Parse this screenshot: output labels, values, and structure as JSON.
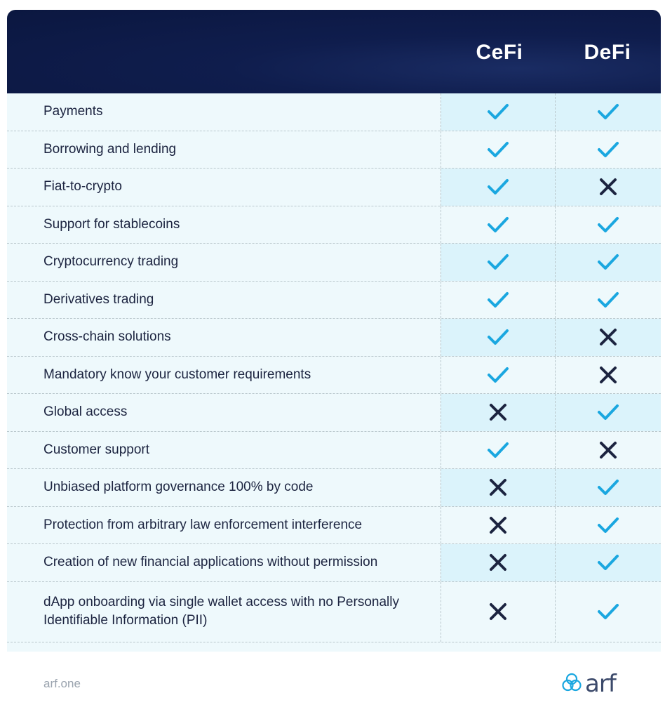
{
  "header": {
    "columns": [
      "CeFi",
      "DeFi"
    ]
  },
  "rows": [
    {
      "label": "Payments",
      "cefi": "check",
      "defi": "check"
    },
    {
      "label": "Borrowing and lending",
      "cefi": "check",
      "defi": "check"
    },
    {
      "label": "Fiat-to-crypto",
      "cefi": "check",
      "defi": "cross"
    },
    {
      "label": "Support for stablecoins",
      "cefi": "check",
      "defi": "check"
    },
    {
      "label": "Cryptocurrency trading",
      "cefi": "check",
      "defi": "check"
    },
    {
      "label": "Derivatives trading",
      "cefi": "check",
      "defi": "check"
    },
    {
      "label": "Cross-chain solutions",
      "cefi": "check",
      "defi": "cross"
    },
    {
      "label": "Mandatory know your customer requirements",
      "cefi": "check",
      "defi": "cross"
    },
    {
      "label": "Global access",
      "cefi": "cross",
      "defi": "check"
    },
    {
      "label": "Customer support",
      "cefi": "check",
      "defi": "cross"
    },
    {
      "label": "Unbiased platform governance 100% by code",
      "cefi": "cross",
      "defi": "check"
    },
    {
      "label": "Protection from arbitrary law enforcement interference",
      "cefi": "cross",
      "defi": "check"
    },
    {
      "label": "Creation of new financial applications without permission",
      "cefi": "cross",
      "defi": "check"
    },
    {
      "label": "dApp onboarding via single wallet access with no Personally Identifiable Information (PII)",
      "cefi": "cross",
      "defi": "check"
    }
  ],
  "footer": {
    "url": "arf.one",
    "logo_text": "arf"
  },
  "colors": {
    "header_bg": "#0b1740",
    "check": "#1aa7e0",
    "cross": "#1c2440",
    "row_bg": "#eef9fc",
    "cell_shade": "#dbf3fb"
  },
  "icons": {
    "check": "check-icon",
    "cross": "cross-icon",
    "logo": "arf-logo-icon"
  }
}
